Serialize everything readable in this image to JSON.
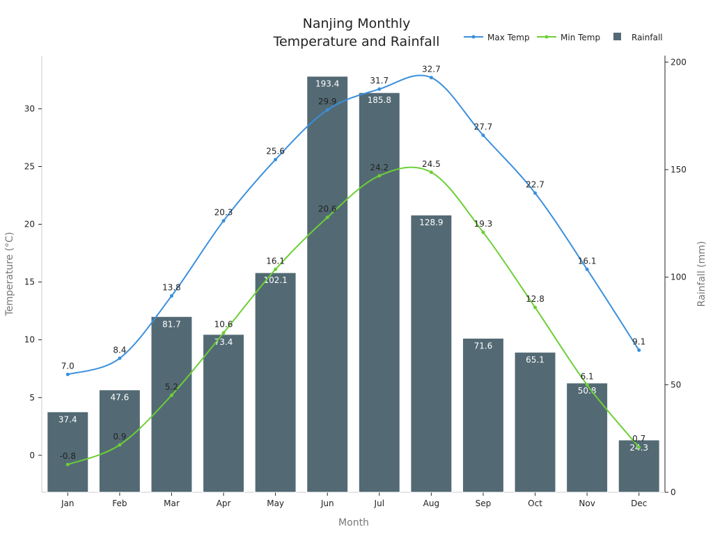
{
  "chart_data": {
    "type": "bar",
    "title": "Nanjing Monthly\nTemperature and Rainfall",
    "xlabel": "Month",
    "ylabel_left": "Temperature (°C)",
    "ylabel_right": "Rainfall (mm)",
    "categories": [
      "Jan",
      "Feb",
      "Mar",
      "Apr",
      "May",
      "Jun",
      "Jul",
      "Aug",
      "Sep",
      "Oct",
      "Nov",
      "Dec"
    ],
    "ylim_left": [
      -3.2,
      34.6
    ],
    "ylim_right": [
      0,
      203
    ],
    "yticks_left": [
      0,
      5,
      10,
      15,
      20,
      25,
      30
    ],
    "yticks_right": [
      0,
      50,
      100,
      150,
      200
    ],
    "legend": {
      "placement": "top-right",
      "entries": [
        "Max Temp",
        "Min Temp",
        "Rainfall"
      ]
    },
    "grid": false,
    "series": [
      {
        "name": "Max Temp",
        "type": "line",
        "axis": "left",
        "color": "#3a8fdc",
        "values": [
          7.0,
          8.4,
          13.8,
          20.3,
          25.6,
          29.9,
          31.7,
          32.7,
          27.7,
          22.7,
          16.1,
          9.1
        ]
      },
      {
        "name": "Min Temp",
        "type": "line",
        "axis": "left",
        "color": "#6ccf36",
        "values": [
          -0.8,
          0.9,
          5.2,
          10.6,
          16.1,
          20.6,
          24.2,
          24.5,
          19.3,
          12.8,
          6.1,
          0.7
        ]
      },
      {
        "name": "Rainfall",
        "type": "bar",
        "axis": "right",
        "color": "#536a74",
        "values": [
          37.4,
          47.6,
          81.7,
          73.4,
          102.1,
          193.4,
          185.8,
          128.9,
          71.6,
          65.1,
          50.8,
          24.3
        ]
      }
    ]
  }
}
